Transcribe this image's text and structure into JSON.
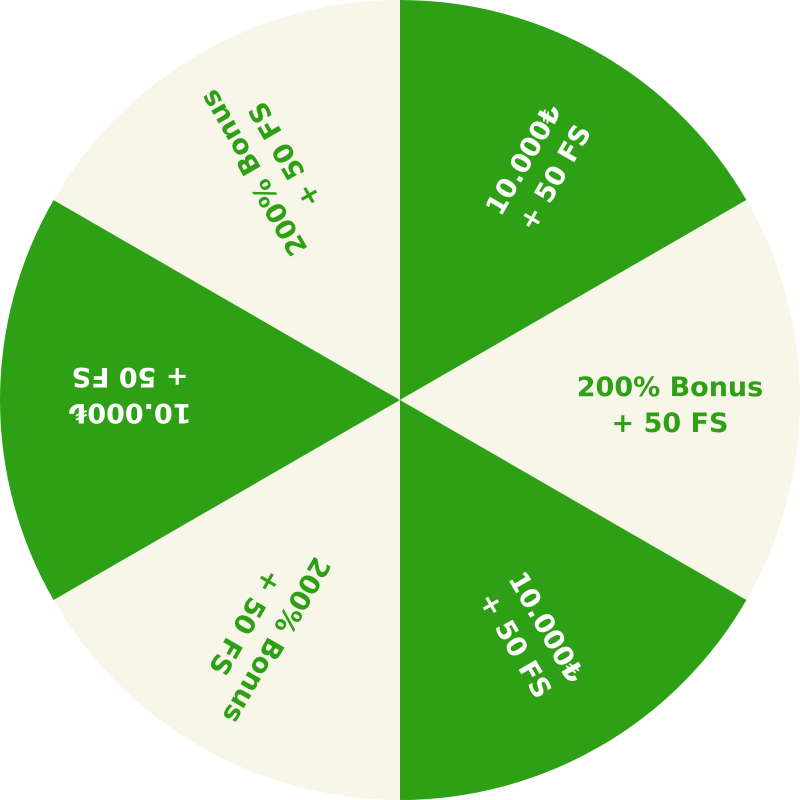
{
  "wheel": {
    "colors": {
      "green": "#2ea016",
      "cream": "#f8f6e8"
    },
    "segments": [
      {
        "line1": "10.000₺",
        "line2": "+ 50 FS",
        "fill": "green"
      },
      {
        "line1": "200% Bonus",
        "line2": "+ 50 FS",
        "fill": "cream"
      },
      {
        "line1": "10.000₺",
        "line2": "+ 50 FS",
        "fill": "green"
      },
      {
        "line1": "200% Bonus",
        "line2": "+ 50 FS",
        "fill": "cream"
      },
      {
        "line1": "10.000₺",
        "line2": "+ 50 FS",
        "fill": "green"
      },
      {
        "line1": "200% Bonus",
        "line2": "+ 50 FS",
        "fill": "cream"
      }
    ]
  }
}
